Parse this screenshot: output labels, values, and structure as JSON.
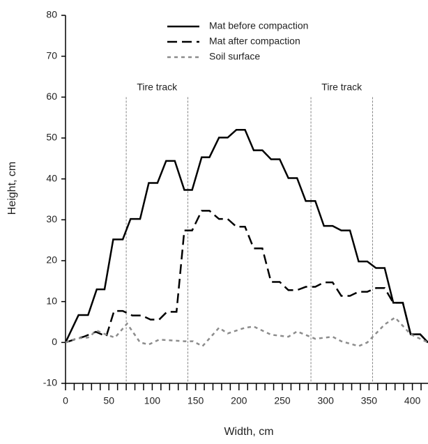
{
  "chart_data": {
    "type": "line",
    "xlabel": "Width, cm",
    "ylabel": "Height, cm",
    "xlim": [
      0,
      418
    ],
    "ylim": [
      -10,
      80
    ],
    "xticks": [
      0,
      50,
      100,
      150,
      200,
      250,
      300,
      350,
      400
    ],
    "xminorticks": [
      10,
      20,
      30,
      40,
      60,
      70,
      80,
      90,
      110,
      120,
      130,
      140,
      160,
      170,
      180,
      190,
      210,
      220,
      230,
      240,
      260,
      270,
      280,
      290,
      310,
      320,
      330,
      340,
      360,
      370,
      380,
      390,
      410
    ],
    "yticks": [
      -10,
      0,
      10,
      20,
      30,
      40,
      50,
      60,
      70,
      80
    ],
    "grid": false,
    "legend": "top",
    "tire_tracks": [
      {
        "label": "Tire track",
        "xrange": [
          70,
          141
        ]
      },
      {
        "label": "Tire track",
        "xrange": [
          283,
          354
        ]
      }
    ],
    "series": [
      {
        "name": "Mat before compaction",
        "color": "#000000",
        "dash": "solid",
        "width": 2.5,
        "x": [
          0,
          15,
          26,
          36,
          45,
          55,
          66,
          75,
          86,
          96,
          106,
          116,
          126,
          137,
          146,
          157,
          166,
          177,
          187,
          197,
          207,
          217,
          227,
          237,
          247,
          257,
          267,
          277,
          288,
          298,
          308,
          318,
          328,
          338,
          348,
          358,
          368,
          378,
          389,
          398,
          409,
          418
        ],
        "values": [
          0,
          6.7,
          6.7,
          13,
          13,
          25.2,
          25.2,
          30.2,
          30.2,
          39,
          39,
          44.4,
          44.4,
          37.3,
          37.3,
          45.3,
          45.3,
          50.1,
          50.1,
          52,
          52,
          47,
          47,
          44.8,
          44.8,
          40.2,
          40.2,
          34.6,
          34.6,
          28.5,
          28.5,
          27.4,
          27.4,
          19.8,
          19.8,
          18.2,
          18.2,
          9.7,
          9.7,
          2,
          2,
          0
        ]
      },
      {
        "name": "Mat after compaction",
        "color": "#000000",
        "dash": "dashed",
        "width": 2.5,
        "x": [
          0,
          10,
          21,
          35,
          47,
          56,
          66,
          77,
          88,
          98,
          108,
          117,
          128,
          137,
          146,
          157,
          166,
          177,
          187,
          197,
          207,
          217,
          227,
          237,
          247,
          257,
          267,
          277,
          288,
          298,
          308,
          318,
          328,
          338,
          348,
          358,
          368,
          378,
          389,
          398,
          409,
          418
        ],
        "values": [
          0,
          0.7,
          1.4,
          2.6,
          1.5,
          7.7,
          7.7,
          6.6,
          6.6,
          5.6,
          5.6,
          7.5,
          7.5,
          27.4,
          27.4,
          32.2,
          32.2,
          30.2,
          30.2,
          28.3,
          28.3,
          23,
          23,
          14.8,
          14.8,
          12.8,
          12.8,
          13.6,
          13.6,
          14.7,
          14.7,
          11.4,
          11.4,
          12.4,
          12.4,
          13.3,
          13.3,
          9.7,
          9.7,
          2,
          2,
          0
        ]
      },
      {
        "name": "Soil surface",
        "color": "#8c8c8c",
        "dash": "dotted",
        "width": 2.5,
        "x": [
          0,
          13,
          26,
          36,
          47,
          57,
          71,
          86,
          96,
          108,
          137,
          147,
          158,
          177,
          187,
          207,
          217,
          237,
          257,
          267,
          288,
          308,
          318,
          338,
          348,
          368,
          380,
          398,
          418
        ],
        "values": [
          0,
          1,
          1.2,
          2.9,
          1.9,
          1.2,
          4.6,
          0,
          -0.5,
          0.7,
          0.3,
          0.3,
          -0.9,
          3.6,
          2.2,
          3.6,
          3.9,
          1.9,
          1.4,
          2.7,
          0.9,
          1.4,
          0.3,
          -0.9,
          0,
          4.4,
          6.1,
          2,
          0
        ]
      }
    ]
  }
}
